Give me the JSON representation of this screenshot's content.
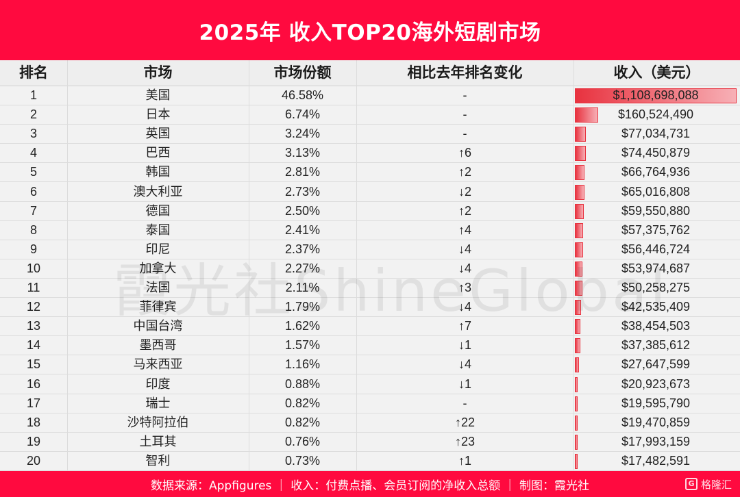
{
  "title": "2025年 收入TOP20海外短剧市场",
  "headers": {
    "rank": "排名",
    "market": "市场",
    "share": "市场份额",
    "change": "相比去年排名变化",
    "revenue": "收入（美元）"
  },
  "rows": [
    {
      "rank": "1",
      "market": "美国",
      "share": "46.58%",
      "change": "-",
      "revenue": "$1,108,698,088",
      "revenue_value": 1108698088
    },
    {
      "rank": "2",
      "market": "日本",
      "share": "6.74%",
      "change": "-",
      "revenue": "$160,524,490",
      "revenue_value": 160524490
    },
    {
      "rank": "3",
      "market": "英国",
      "share": "3.24%",
      "change": "-",
      "revenue": "$77,034,731",
      "revenue_value": 77034731
    },
    {
      "rank": "4",
      "market": "巴西",
      "share": "3.13%",
      "change": "↑6",
      "revenue": "$74,450,879",
      "revenue_value": 74450879
    },
    {
      "rank": "5",
      "market": "韩国",
      "share": "2.81%",
      "change": "↑2",
      "revenue": "$66,764,936",
      "revenue_value": 66764936
    },
    {
      "rank": "6",
      "market": "澳大利亚",
      "share": "2.73%",
      "change": "↓2",
      "revenue": "$65,016,808",
      "revenue_value": 65016808
    },
    {
      "rank": "7",
      "market": "德国",
      "share": "2.50%",
      "change": "↑2",
      "revenue": "$59,550,880",
      "revenue_value": 59550880
    },
    {
      "rank": "8",
      "market": "泰国",
      "share": "2.41%",
      "change": "↑4",
      "revenue": "$57,375,762",
      "revenue_value": 57375762
    },
    {
      "rank": "9",
      "market": "印尼",
      "share": "2.37%",
      "change": "↓4",
      "revenue": "$56,446,724",
      "revenue_value": 56446724
    },
    {
      "rank": "10",
      "market": "加拿大",
      "share": "2.27%",
      "change": "↓4",
      "revenue": "$53,974,687",
      "revenue_value": 53974687
    },
    {
      "rank": "11",
      "market": "法国",
      "share": "2.11%",
      "change": "↑3",
      "revenue": "$50,258,275",
      "revenue_value": 50258275
    },
    {
      "rank": "12",
      "market": "菲律宾",
      "share": "1.79%",
      "change": "↓4",
      "revenue": "$42,535,409",
      "revenue_value": 42535409
    },
    {
      "rank": "13",
      "market": "中国台湾",
      "share": "1.62%",
      "change": "↑7",
      "revenue": "$38,454,503",
      "revenue_value": 38454503
    },
    {
      "rank": "14",
      "market": "墨西哥",
      "share": "1.57%",
      "change": "↓1",
      "revenue": "$37,385,612",
      "revenue_value": 37385612
    },
    {
      "rank": "15",
      "market": "马来西亚",
      "share": "1.16%",
      "change": "↓4",
      "revenue": "$27,647,599",
      "revenue_value": 27647599
    },
    {
      "rank": "16",
      "market": "印度",
      "share": "0.88%",
      "change": "↓1",
      "revenue": "$20,923,673",
      "revenue_value": 20923673
    },
    {
      "rank": "17",
      "market": "瑞士",
      "share": "0.82%",
      "change": "-",
      "revenue": "$19,595,790",
      "revenue_value": 19595790
    },
    {
      "rank": "18",
      "market": "沙特阿拉伯",
      "share": "0.82%",
      "change": "↑22",
      "revenue": "$19,470,859",
      "revenue_value": 19470859
    },
    {
      "rank": "19",
      "market": "土耳其",
      "share": "0.76%",
      "change": "↑23",
      "revenue": "$17,993,159",
      "revenue_value": 17993159
    },
    {
      "rank": "20",
      "market": "智利",
      "share": "0.73%",
      "change": "↑1",
      "revenue": "$17,482,591",
      "revenue_value": 17482591
    }
  ],
  "watermark": "霞光社ShineGlobal",
  "footer": "数据来源：Appfigures ｜ 收入：付费点播、会员订阅的净收入总额 ｜ 制图：霞光社",
  "logo_text": "格隆汇",
  "colors": {
    "title_bg": "#ff0a3f",
    "bar": "#e8323f"
  }
}
